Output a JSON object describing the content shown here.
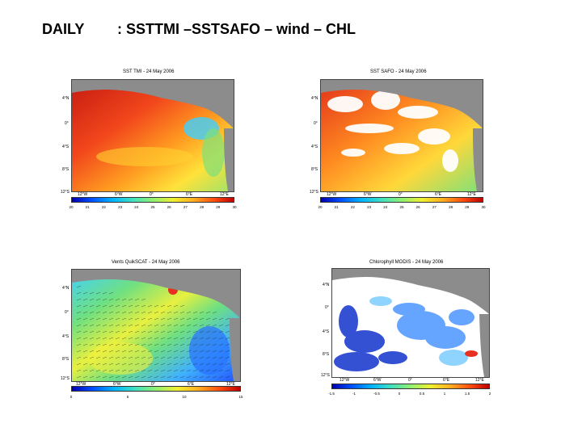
{
  "header": {
    "left": "DAILY",
    "right": ": SSTTMI –SSTSAFO – wind – CHL"
  },
  "panels": {
    "sst_tmi": {
      "title": "SST TMI - 24 May 2006",
      "lat_labels": [
        "4°N",
        "0°",
        "4°S",
        "8°S",
        "12°S"
      ],
      "lon_labels": [
        "12°W",
        "6°W",
        "0°",
        "6°E",
        "12°E"
      ],
      "colorbar_ticks": [
        "20",
        "21",
        "22",
        "23",
        "24",
        "25",
        "26",
        "27",
        "28",
        "29",
        "30"
      ]
    },
    "sst_safo": {
      "title": "SST SAFO - 24 May 2006",
      "lat_labels": [
        "4°N",
        "0°",
        "4°S",
        "8°S",
        "12°S"
      ],
      "lon_labels": [
        "12°W",
        "6°W",
        "0°",
        "6°E",
        "12°E"
      ],
      "colorbar_ticks": [
        "20",
        "21",
        "22",
        "23",
        "24",
        "25",
        "26",
        "27",
        "28",
        "29",
        "30"
      ]
    },
    "wind": {
      "title": "Vents QuikSCAT - 24 May 2006",
      "lat_labels": [
        "4°N",
        "0°",
        "4°S",
        "8°S",
        "12°S"
      ],
      "lon_labels": [
        "12°W",
        "6°W",
        "0°",
        "6°E",
        "12°E"
      ],
      "colorbar_ticks": [
        "0",
        "5",
        "10",
        "15"
      ]
    },
    "chl": {
      "title": "Chlorophyll MODIS - 24 May 2006",
      "lat_labels": [
        "4°N",
        "0°",
        "4°S",
        "8°S",
        "12°S"
      ],
      "lon_labels": [
        "12°W",
        "6°W",
        "0°",
        "6°E",
        "12°E"
      ],
      "colorbar_ticks": [
        "-1.5",
        "-1",
        "-0.5",
        "0",
        "0.5",
        "1",
        "1.5",
        "2"
      ]
    }
  },
  "colors": {
    "land": "#8c8c8c",
    "cloud": "#ffffff",
    "warm": "#e53a1e",
    "cool": "#3fa0ff"
  }
}
